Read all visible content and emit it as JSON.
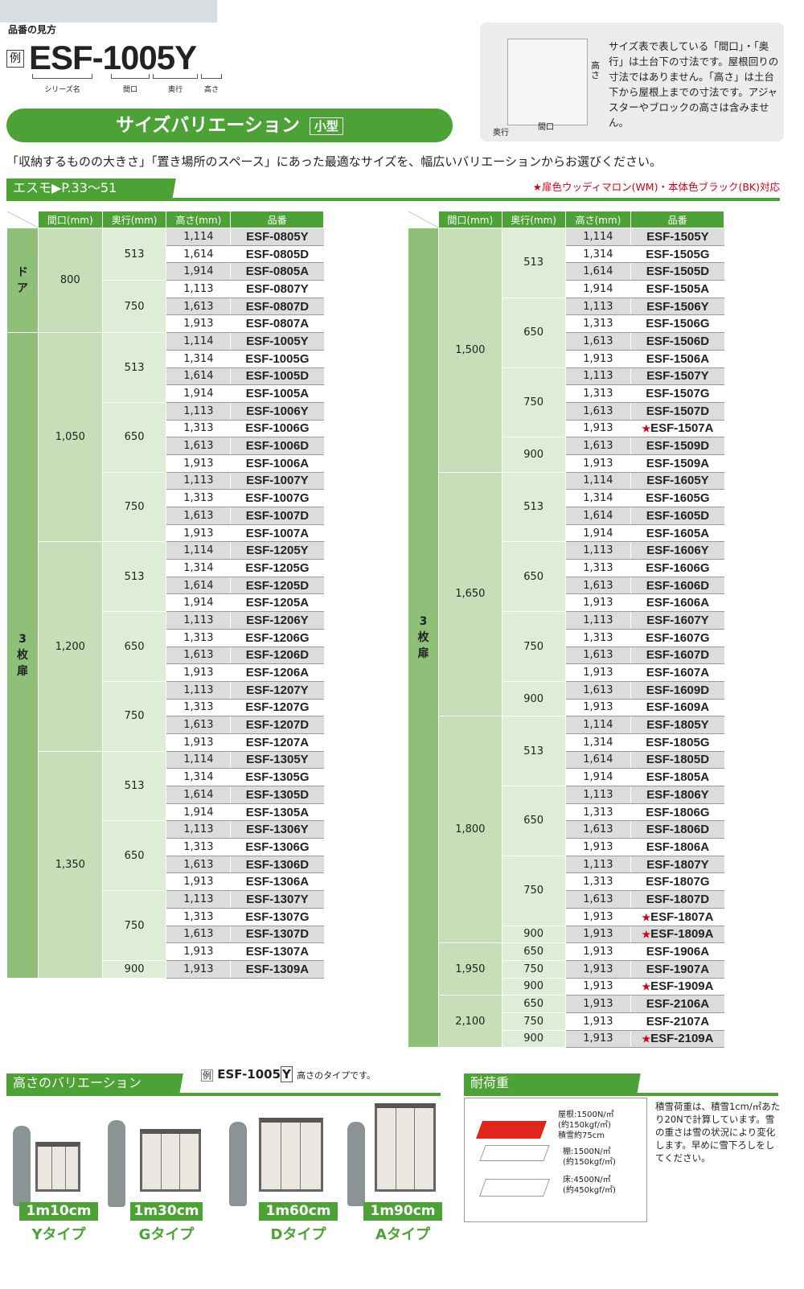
{
  "header": {
    "howto_label": "品番の見方",
    "example_mark": "例",
    "example_code": "ESF-1005Y",
    "segments": [
      "シリーズ名",
      "間口",
      "奥行",
      "高さ"
    ]
  },
  "banner": {
    "title": "サイズバリエーション",
    "badge": "小型"
  },
  "info": {
    "text": "サイズ表で表している「間口」・「奥行」は土台下の寸法です。屋根回りの寸法ではありません。「高さ」は土台下から屋根上までの寸法です。アジャスターやブロックの高さは含みません。",
    "dim_height": "高さ",
    "dim_depth": "奥行",
    "dim_width": "間口"
  },
  "description": "「収納するものの大きさ」「置き場所のスペース」にあった最適なサイズを、幅広いバリエーションからお選びください。",
  "section": {
    "title": "エスモ▶P.33〜51",
    "note": "★扉色ウッディマロン(WM)・本体色ブラック(BK)対応"
  },
  "colors": {
    "green": "#4ca234",
    "type_col": "#8fc07a",
    "width_col": "#c6dfb8",
    "depth_col": "#deedd6",
    "star": "#d6001c"
  },
  "table_headers": [
    "間口(mm)",
    "奥行(mm)",
    "高さ(mm)",
    "品番"
  ],
  "left_table": [
    {
      "type": "ドア",
      "widths": [
        {
          "width": "800",
          "depths": [
            {
              "depth": "513",
              "rows": [
                [
                  "1,114",
                  "ESF-0805Y"
                ],
                [
                  "1,614",
                  "ESF-0805D"
                ],
                [
                  "1,914",
                  "ESF-0805A"
                ]
              ]
            },
            {
              "depth": "750",
              "rows": [
                [
                  "1,113",
                  "ESF-0807Y"
                ],
                [
                  "1,613",
                  "ESF-0807D"
                ],
                [
                  "1,913",
                  "ESF-0807A"
                ]
              ]
            }
          ]
        }
      ]
    },
    {
      "type": "3枚扉",
      "widths": [
        {
          "width": "1,050",
          "depths": [
            {
              "depth": "513",
              "rows": [
                [
                  "1,114",
                  "ESF-1005Y"
                ],
                [
                  "1,314",
                  "ESF-1005G"
                ],
                [
                  "1,614",
                  "ESF-1005D"
                ],
                [
                  "1,914",
                  "ESF-1005A"
                ]
              ]
            },
            {
              "depth": "650",
              "rows": [
                [
                  "1,113",
                  "ESF-1006Y"
                ],
                [
                  "1,313",
                  "ESF-1006G"
                ],
                [
                  "1,613",
                  "ESF-1006D"
                ],
                [
                  "1,913",
                  "ESF-1006A"
                ]
              ]
            },
            {
              "depth": "750",
              "rows": [
                [
                  "1,113",
                  "ESF-1007Y"
                ],
                [
                  "1,313",
                  "ESF-1007G"
                ],
                [
                  "1,613",
                  "ESF-1007D"
                ],
                [
                  "1,913",
                  "ESF-1007A"
                ]
              ]
            }
          ]
        },
        {
          "width": "1,200",
          "depths": [
            {
              "depth": "513",
              "rows": [
                [
                  "1,114",
                  "ESF-1205Y"
                ],
                [
                  "1,314",
                  "ESF-1205G"
                ],
                [
                  "1,614",
                  "ESF-1205D"
                ],
                [
                  "1,914",
                  "ESF-1205A"
                ]
              ]
            },
            {
              "depth": "650",
              "rows": [
                [
                  "1,113",
                  "ESF-1206Y"
                ],
                [
                  "1,313",
                  "ESF-1206G"
                ],
                [
                  "1,613",
                  "ESF-1206D"
                ],
                [
                  "1,913",
                  "ESF-1206A"
                ]
              ]
            },
            {
              "depth": "750",
              "rows": [
                [
                  "1,113",
                  "ESF-1207Y"
                ],
                [
                  "1,313",
                  "ESF-1207G"
                ],
                [
                  "1,613",
                  "ESF-1207D"
                ],
                [
                  "1,913",
                  "ESF-1207A"
                ]
              ]
            }
          ]
        },
        {
          "width": "1,350",
          "depths": [
            {
              "depth": "513",
              "rows": [
                [
                  "1,114",
                  "ESF-1305Y"
                ],
                [
                  "1,314",
                  "ESF-1305G"
                ],
                [
                  "1,614",
                  "ESF-1305D"
                ],
                [
                  "1,914",
                  "ESF-1305A"
                ]
              ]
            },
            {
              "depth": "650",
              "rows": [
                [
                  "1,113",
                  "ESF-1306Y"
                ],
                [
                  "1,313",
                  "ESF-1306G"
                ],
                [
                  "1,613",
                  "ESF-1306D"
                ],
                [
                  "1,913",
                  "ESF-1306A"
                ]
              ]
            },
            {
              "depth": "750",
              "rows": [
                [
                  "1,113",
                  "ESF-1307Y"
                ],
                [
                  "1,313",
                  "ESF-1307G"
                ],
                [
                  "1,613",
                  "ESF-1307D"
                ],
                [
                  "1,913",
                  "ESF-1307A"
                ]
              ]
            },
            {
              "depth": "900",
              "rows": [
                [
                  "1,913",
                  "ESF-1309A"
                ]
              ]
            }
          ]
        }
      ]
    }
  ],
  "right_table": [
    {
      "type": "3枚扉",
      "widths": [
        {
          "width": "1,500",
          "depths": [
            {
              "depth": "513",
              "rows": [
                [
                  "1,114",
                  "ESF-1505Y"
                ],
                [
                  "1,314",
                  "ESF-1505G"
                ],
                [
                  "1,614",
                  "ESF-1505D"
                ],
                [
                  "1,914",
                  "ESF-1505A"
                ]
              ]
            },
            {
              "depth": "650",
              "rows": [
                [
                  "1,113",
                  "ESF-1506Y"
                ],
                [
                  "1,313",
                  "ESF-1506G"
                ],
                [
                  "1,613",
                  "ESF-1506D"
                ],
                [
                  "1,913",
                  "ESF-1506A"
                ]
              ]
            },
            {
              "depth": "750",
              "rows": [
                [
                  "1,113",
                  "ESF-1507Y"
                ],
                [
                  "1,313",
                  "ESF-1507G"
                ],
                [
                  "1,613",
                  "ESF-1507D"
                ],
                [
                  "1,913",
                  "ESF-1507A",
                  "★"
                ]
              ]
            },
            {
              "depth": "900",
              "rows": [
                [
                  "1,613",
                  "ESF-1509D"
                ],
                [
                  "1,913",
                  "ESF-1509A"
                ]
              ]
            }
          ]
        },
        {
          "width": "1,650",
          "depths": [
            {
              "depth": "513",
              "rows": [
                [
                  "1,114",
                  "ESF-1605Y"
                ],
                [
                  "1,314",
                  "ESF-1605G"
                ],
                [
                  "1,614",
                  "ESF-1605D"
                ],
                [
                  "1,914",
                  "ESF-1605A"
                ]
              ]
            },
            {
              "depth": "650",
              "rows": [
                [
                  "1,113",
                  "ESF-1606Y"
                ],
                [
                  "1,313",
                  "ESF-1606G"
                ],
                [
                  "1,613",
                  "ESF-1606D"
                ],
                [
                  "1,913",
                  "ESF-1606A"
                ]
              ]
            },
            {
              "depth": "750",
              "rows": [
                [
                  "1,113",
                  "ESF-1607Y"
                ],
                [
                  "1,313",
                  "ESF-1607G"
                ],
                [
                  "1,613",
                  "ESF-1607D"
                ],
                [
                  "1,913",
                  "ESF-1607A"
                ]
              ]
            },
            {
              "depth": "900",
              "rows": [
                [
                  "1,613",
                  "ESF-1609D"
                ],
                [
                  "1,913",
                  "ESF-1609A"
                ]
              ]
            }
          ]
        },
        {
          "width": "1,800",
          "depths": [
            {
              "depth": "513",
              "rows": [
                [
                  "1,114",
                  "ESF-1805Y"
                ],
                [
                  "1,314",
                  "ESF-1805G"
                ],
                [
                  "1,614",
                  "ESF-1805D"
                ],
                [
                  "1,914",
                  "ESF-1805A"
                ]
              ]
            },
            {
              "depth": "650",
              "rows": [
                [
                  "1,113",
                  "ESF-1806Y"
                ],
                [
                  "1,313",
                  "ESF-1806G"
                ],
                [
                  "1,613",
                  "ESF-1806D"
                ],
                [
                  "1,913",
                  "ESF-1806A"
                ]
              ]
            },
            {
              "depth": "750",
              "rows": [
                [
                  "1,113",
                  "ESF-1807Y"
                ],
                [
                  "1,313",
                  "ESF-1807G"
                ],
                [
                  "1,613",
                  "ESF-1807D"
                ],
                [
                  "1,913",
                  "ESF-1807A",
                  "★"
                ]
              ]
            },
            {
              "depth": "900",
              "rows": [
                [
                  "1,913",
                  "ESF-1809A",
                  "★"
                ]
              ]
            }
          ]
        },
        {
          "width": "1,950",
          "depths": [
            {
              "depth": "650",
              "rows": [
                [
                  "1,913",
                  "ESF-1906A"
                ]
              ]
            },
            {
              "depth": "750",
              "rows": [
                [
                  "1,913",
                  "ESF-1907A"
                ]
              ]
            },
            {
              "depth": "900",
              "rows": [
                [
                  "1,913",
                  "ESF-1909A",
                  "★"
                ]
              ]
            }
          ]
        },
        {
          "width": "2,100",
          "depths": [
            {
              "depth": "650",
              "rows": [
                [
                  "1,913",
                  "ESF-2106A"
                ]
              ]
            },
            {
              "depth": "750",
              "rows": [
                [
                  "1,913",
                  "ESF-2107A"
                ]
              ]
            },
            {
              "depth": "900",
              "rows": [
                [
                  "1,913",
                  "ESF-2109A",
                  "★"
                ]
              ]
            }
          ]
        }
      ]
    }
  ],
  "height_variation": {
    "title": "高さのバリエーション",
    "example_mark": "例",
    "example_code": "ESF-1005",
    "example_suffix": "Y",
    "example_note": "高さのタイプです。",
    "types": [
      {
        "height": "1m10cm",
        "type": "Yタイプ"
      },
      {
        "height": "1m30cm",
        "type": "Gタイプ"
      },
      {
        "height": "1m60cm",
        "type": "Dタイプ"
      },
      {
        "height": "1m90cm",
        "type": "Aタイプ"
      }
    ]
  },
  "load": {
    "title": "耐荷重",
    "roof": "屋根:1500N/㎡",
    "roof_kgf": "(約150kgf/㎡)",
    "roof_snow": "積雪約75cm",
    "shelf": "棚:1500N/㎡",
    "shelf_kgf": "(約150kgf/㎡)",
    "floor": "床:4500N/㎡",
    "floor_kgf": "(約450kgf/㎡)",
    "note": "積雪荷重は、積雪1cm/㎡あたり20Nで計算しています。雪の重さは雪の状況により変化します。早めに雪下ろしをしてください。"
  }
}
